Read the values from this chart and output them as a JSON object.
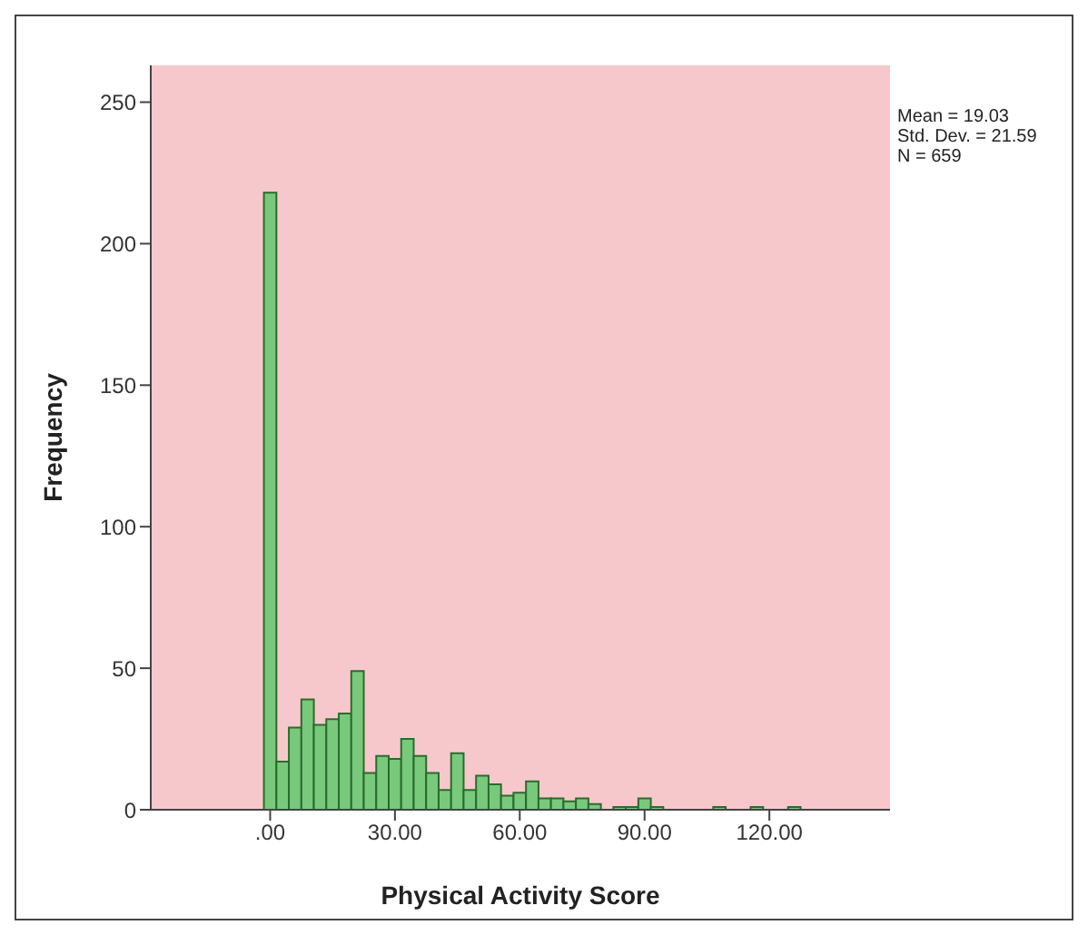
{
  "chart_data": {
    "type": "histogram",
    "xlabel": "Physical Activity Score",
    "ylabel": "Frequency",
    "annotations": [
      "Mean = 19.03",
      "Std. Dev. = 21.59",
      "N = 659"
    ],
    "bins": [
      -1.5,
      1.5,
      4.5,
      7.5,
      10.5,
      13.5,
      16.5,
      19.5,
      22.5,
      25.5,
      28.5,
      31.5,
      34.5,
      37.5,
      40.5,
      43.5,
      46.5,
      49.5,
      52.5,
      55.5,
      58.5,
      61.5,
      64.5,
      67.5,
      70.5,
      73.5,
      76.5,
      79.5,
      82.5,
      85.5,
      88.5,
      91.5,
      94.5,
      97.5,
      100.5,
      103.5,
      106.5,
      109.5,
      112.5,
      115.5,
      118.5,
      121.5,
      124.5,
      127.5
    ],
    "values": [
      218,
      17,
      29,
      39,
      30,
      32,
      34,
      49,
      13,
      19,
      18,
      25,
      19,
      13,
      7,
      20,
      7,
      12,
      9,
      5,
      6,
      10,
      4,
      4,
      3,
      4,
      2,
      0,
      1,
      1,
      4,
      1,
      0,
      0,
      0,
      0,
      1,
      0,
      0,
      1,
      0,
      0,
      1
    ],
    "color": "#79c97c",
    "xlim": [
      -28.7,
      149
    ],
    "xticks": [
      {
        "value": 0,
        "label": ".00"
      },
      {
        "value": 30,
        "label": "30.00"
      },
      {
        "value": 60,
        "label": "60.00"
      },
      {
        "value": 90,
        "label": "90.00"
      },
      {
        "value": 120,
        "label": "120.00"
      }
    ],
    "ylim": [
      0,
      263
    ],
    "yticks": [
      0,
      50,
      100,
      150,
      200,
      250
    ]
  }
}
